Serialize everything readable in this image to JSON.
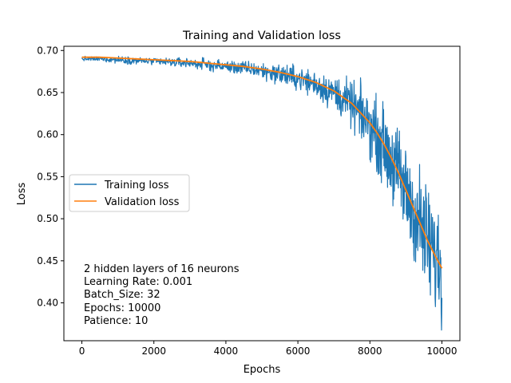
{
  "chart_data": {
    "type": "line",
    "title": "Training and Validation loss",
    "xlabel": "Epochs",
    "ylabel": "Loss",
    "xlim": [
      -500,
      10500
    ],
    "ylim": [
      0.355,
      0.705
    ],
    "xticks": [
      0,
      2000,
      4000,
      6000,
      8000,
      10000
    ],
    "yticks": [
      0.4,
      0.45,
      0.5,
      0.55,
      0.6,
      0.65,
      0.7
    ],
    "grid": false,
    "legend_position": "center-left",
    "series": [
      {
        "name": "Training loss",
        "color": "#1f77b4",
        "noisy": true,
        "x": [
          0,
          500,
          1000,
          1500,
          2000,
          2500,
          3000,
          3500,
          4000,
          4500,
          5000,
          5500,
          6000,
          6500,
          7000,
          7500,
          8000,
          8200,
          8400,
          8600,
          8800,
          9000,
          9200,
          9400,
          9600,
          9800,
          10000
        ],
        "y": [
          0.69,
          0.69,
          0.689,
          0.688,
          0.687,
          0.686,
          0.685,
          0.683,
          0.681,
          0.679,
          0.676,
          0.672,
          0.667,
          0.66,
          0.65,
          0.635,
          0.612,
          0.6,
          0.586,
          0.57,
          0.552,
          0.532,
          0.512,
          0.492,
          0.472,
          0.455,
          0.44
        ],
        "noise": [
          0.002,
          0.002,
          0.003,
          0.003,
          0.003,
          0.004,
          0.004,
          0.005,
          0.005,
          0.006,
          0.007,
          0.009,
          0.01,
          0.012,
          0.015,
          0.02,
          0.027,
          0.03,
          0.033,
          0.036,
          0.039,
          0.042,
          0.045,
          0.048,
          0.05,
          0.052,
          0.052
        ]
      },
      {
        "name": "Validation loss",
        "color": "#ff7f0e",
        "noisy": false,
        "x": [
          0,
          500,
          1000,
          1500,
          2000,
          2500,
          3000,
          3500,
          4000,
          4500,
          5000,
          5500,
          6000,
          6500,
          7000,
          7500,
          8000,
          8200,
          8400,
          8600,
          8800,
          9000,
          9200,
          9400,
          9600,
          9800,
          10000
        ],
        "y": [
          0.692,
          0.692,
          0.691,
          0.69,
          0.689,
          0.688,
          0.687,
          0.685,
          0.683,
          0.681,
          0.678,
          0.674,
          0.669,
          0.662,
          0.652,
          0.637,
          0.614,
          0.602,
          0.588,
          0.572,
          0.554,
          0.534,
          0.514,
          0.494,
          0.474,
          0.457,
          0.441
        ]
      }
    ],
    "annotation": [
      "2 hidden layers of 16 neurons",
      "Learning Rate: 0.001",
      "Batch_Size: 32",
      "Epochs: 10000",
      "Patience: 10"
    ]
  }
}
